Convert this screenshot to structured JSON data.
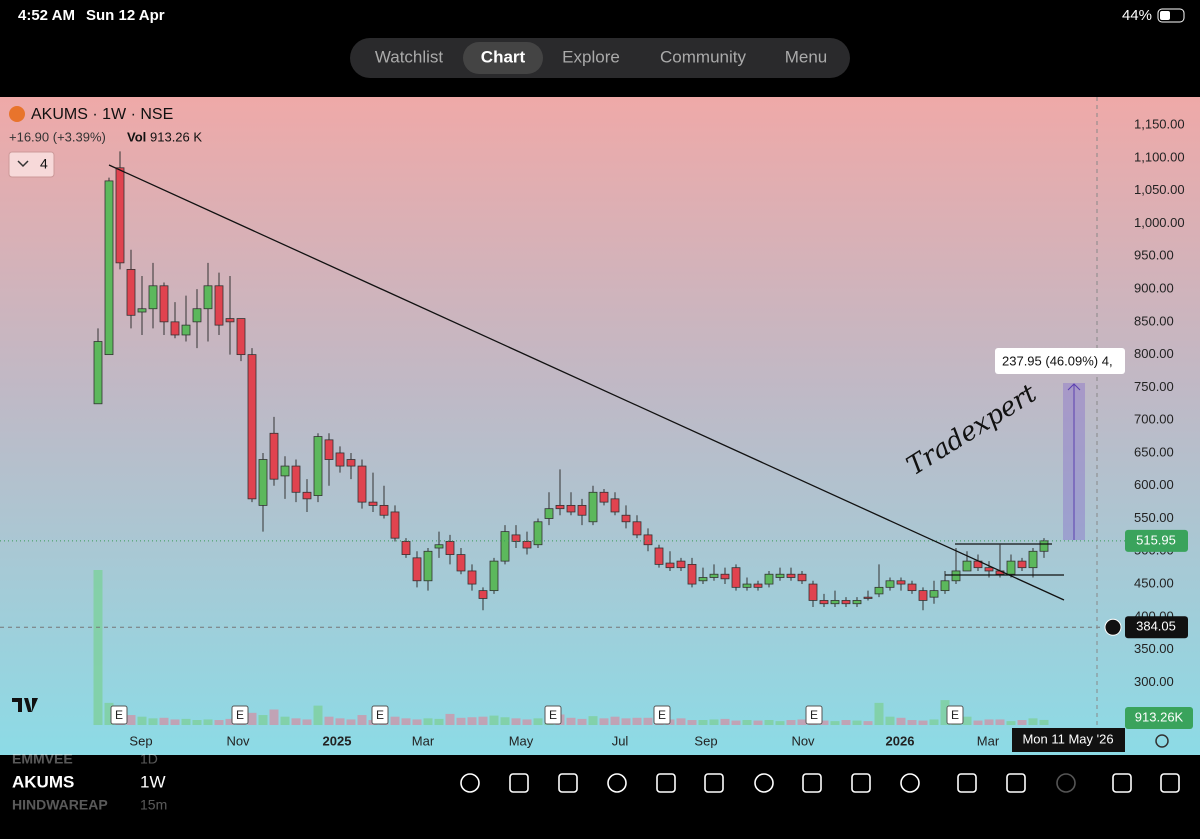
{
  "status": {
    "time": "4:52 AM",
    "date": "Sun 12 Apr",
    "battery": "44%"
  },
  "nav": {
    "tabs": [
      "Watchlist",
      "Chart",
      "Explore",
      "Community",
      "Menu"
    ],
    "active": 1
  },
  "header": {
    "symbol": "AKUMS · 1W · NSE",
    "change": "+16.90 (+3.39%)",
    "vol_label": "Vol",
    "volume": "913.26 K",
    "indicators": "4"
  },
  "chart_data": {
    "type": "candlestick",
    "open": [
      725,
      800,
      1085,
      930,
      865,
      870,
      905,
      850,
      830,
      850,
      870,
      905,
      855,
      855,
      800,
      570,
      680,
      615,
      630,
      590,
      585,
      670,
      650,
      640,
      630,
      575,
      570,
      560,
      515,
      490,
      455,
      505,
      515,
      495,
      470,
      440,
      440,
      485,
      525,
      515,
      510,
      550,
      570,
      570,
      570,
      545,
      590,
      580,
      555,
      545,
      525,
      505,
      482,
      485,
      480,
      455,
      460,
      465,
      475,
      445,
      450,
      450,
      460,
      465,
      465,
      450,
      425,
      420,
      425,
      420,
      430,
      435,
      445,
      455,
      450,
      440,
      430,
      440,
      455,
      470,
      485,
      475,
      470,
      465,
      485,
      475,
      500
    ],
    "high": [
      840,
      1070,
      1110,
      960,
      920,
      940,
      910,
      880,
      890,
      900,
      940,
      925,
      920,
      855,
      810,
      650,
      705,
      645,
      640,
      610,
      680,
      680,
      660,
      650,
      640,
      620,
      600,
      570,
      520,
      500,
      505,
      530,
      525,
      505,
      480,
      445,
      490,
      540,
      540,
      530,
      550,
      590,
      625,
      590,
      580,
      600,
      595,
      590,
      570,
      555,
      535,
      510,
      500,
      490,
      490,
      475,
      480,
      475,
      480,
      460,
      455,
      470,
      475,
      475,
      470,
      455,
      435,
      440,
      430,
      430,
      440,
      480,
      460,
      460,
      455,
      445,
      455,
      470,
      505,
      500,
      495,
      485,
      510,
      495,
      490,
      505,
      520
    ],
    "low": [
      725,
      800,
      930,
      840,
      830,
      840,
      830,
      825,
      820,
      810,
      820,
      830,
      800,
      790,
      575,
      530,
      600,
      580,
      575,
      560,
      575,
      600,
      620,
      610,
      565,
      560,
      550,
      515,
      490,
      445,
      440,
      490,
      480,
      465,
      440,
      410,
      435,
      480,
      505,
      495,
      505,
      540,
      555,
      555,
      540,
      540,
      570,
      555,
      535,
      520,
      500,
      475,
      470,
      470,
      445,
      450,
      455,
      450,
      440,
      440,
      440,
      445,
      455,
      455,
      450,
      415,
      415,
      415,
      415,
      415,
      425,
      430,
      440,
      440,
      435,
      410,
      420,
      435,
      450,
      470,
      470,
      460,
      460,
      460,
      470,
      460,
      490
    ],
    "close": [
      820,
      1065,
      940,
      860,
      870,
      905,
      850,
      830,
      845,
      870,
      905,
      845,
      850,
      800,
      580,
      640,
      610,
      630,
      590,
      580,
      675,
      640,
      630,
      630,
      575,
      570,
      555,
      520,
      495,
      455,
      500,
      510,
      495,
      470,
      450,
      428,
      485,
      530,
      515,
      505,
      545,
      565,
      565,
      560,
      555,
      590,
      575,
      560,
      545,
      525,
      510,
      480,
      475,
      475,
      450,
      460,
      465,
      458,
      445,
      450,
      445,
      465,
      465,
      460,
      455,
      425,
      420,
      425,
      420,
      425,
      428,
      445,
      455,
      450,
      440,
      425,
      440,
      455,
      470,
      485,
      475,
      470,
      465,
      485,
      475,
      500,
      515.95
    ],
    "volume": [
      28000,
      4000,
      2500,
      1800,
      1500,
      1200,
      1300,
      1000,
      1100,
      900,
      1000,
      900,
      1100,
      1500,
      2200,
      1800,
      2800,
      1500,
      1200,
      1000,
      3500,
      1500,
      1200,
      1000,
      1800,
      900,
      1100,
      1500,
      1200,
      1000,
      1200,
      1100,
      2000,
      1300,
      1400,
      1500,
      1700,
      1400,
      1200,
      1000,
      1200,
      1800,
      1900,
      1300,
      1100,
      1600,
      1200,
      1500,
      1200,
      1300,
      1300,
      1500,
      1000,
      1200,
      900,
      900,
      1000,
      1100,
      800,
      900,
      800,
      900,
      700,
      900,
      1000,
      1400,
      800,
      700,
      900,
      800,
      700,
      4000,
      1500,
      1300,
      900,
      800,
      1000,
      4500,
      2000,
      1500,
      800,
      1000,
      1000,
      700,
      900,
      1200,
      913.26
    ],
    "up_color": "#5cb85c",
    "down_color": "#e0434f",
    "ylim": [
      235,
      1193
    ],
    "yticks": [
      {
        "value": 1150,
        "label": "1,150.00"
      },
      {
        "value": 1100,
        "label": "1,100.00"
      },
      {
        "value": 1050,
        "label": "1,050.00"
      },
      {
        "value": 1000,
        "label": "1,000.00"
      },
      {
        "value": 950,
        "label": "950.00"
      },
      {
        "value": 900,
        "label": "900.00"
      },
      {
        "value": 850,
        "label": "850.00"
      },
      {
        "value": 800,
        "label": "800.00"
      },
      {
        "value": 750,
        "label": "750.00"
      },
      {
        "value": 700,
        "label": "700.00"
      },
      {
        "value": 650,
        "label": "650.00"
      },
      {
        "value": 600,
        "label": "600.00"
      },
      {
        "value": 550,
        "label": "550.00"
      },
      {
        "value": 500,
        "label": "500.00"
      },
      {
        "value": 450,
        "label": "450.00"
      },
      {
        "value": 400,
        "label": "400.00"
      },
      {
        "value": 350,
        "label": "350.00"
      },
      {
        "value": 300,
        "label": "300.00"
      }
    ],
    "xlabels": [
      "Sep",
      "Nov",
      "2025",
      "Mar",
      "May",
      "Jul",
      "Sep",
      "Nov",
      "2026",
      "Mar"
    ],
    "last_price": 515.95,
    "crosshair_price": 384.05,
    "volume_label": "913.26K",
    "crosshair_date": "Mon 11 May '26",
    "measure": "237.95 (46.09%) 4,",
    "earnings": [
      "E",
      "E",
      "E",
      "E",
      "E",
      "E",
      "E"
    ],
    "signature": "Tradexpert"
  },
  "watchlist": [
    {
      "symbol": "EMMVEE",
      "interval": "1D"
    },
    {
      "symbol": "AKUMS",
      "interval": "1W"
    },
    {
      "symbol": "HINDWAREAP",
      "interval": "15m"
    }
  ]
}
